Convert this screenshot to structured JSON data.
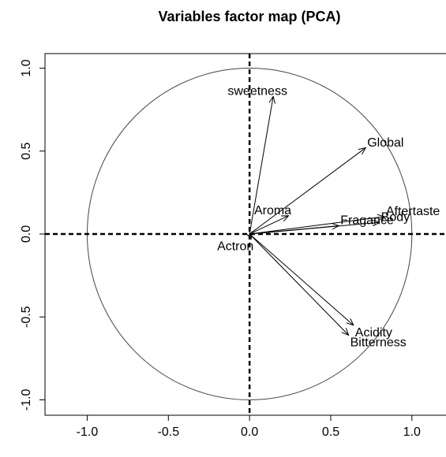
{
  "chart_data": {
    "type": "vector",
    "title": "Variables factor map (PCA)",
    "labels": [
      "sweetness",
      "Global",
      "Aroma",
      "Fragance",
      "Body",
      "Aftertaste",
      "Actron",
      "Acidity",
      "Bitterness"
    ],
    "x": [
      0.146,
      0.715,
      0.24,
      0.55,
      0.8,
      0.83,
      0.01,
      0.64,
      0.61
    ],
    "values": [
      0.83,
      0.52,
      0.11,
      0.05,
      0.07,
      0.105,
      -0.03,
      -0.55,
      -0.61
    ],
    "color": "#000000",
    "xlim": [
      -1.26,
      1.21
    ],
    "ylim": [
      -1.093,
      1.088
    ],
    "xticks": [
      {
        "value": -1,
        "label": "-1.0"
      },
      -0.5,
      {
        "value": 0,
        "label": "0.0"
      },
      0.5,
      {
        "value": 1,
        "label": "1.0"
      }
    ],
    "yticks": [
      {
        "value": -1,
        "label": "-1.0"
      },
      -0.5,
      {
        "value": 0,
        "label": "0.0"
      },
      0.5,
      {
        "value": 1,
        "label": "1.0"
      }
    ]
  }
}
